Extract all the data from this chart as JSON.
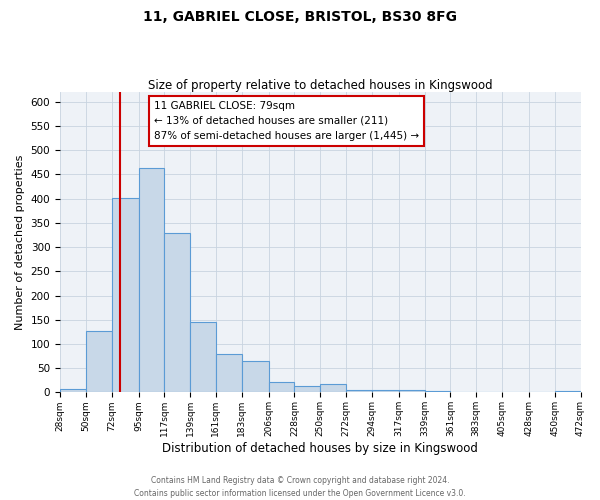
{
  "title": "11, GABRIEL CLOSE, BRISTOL, BS30 8FG",
  "subtitle": "Size of property relative to detached houses in Kingswood",
  "xlabel": "Distribution of detached houses by size in Kingswood",
  "ylabel": "Number of detached properties",
  "bin_edges": [
    28,
    50,
    72,
    95,
    117,
    139,
    161,
    183,
    206,
    228,
    250,
    272,
    294,
    317,
    339,
    361,
    383,
    405,
    428,
    450,
    472
  ],
  "bin_labels": [
    "28sqm",
    "50sqm",
    "72sqm",
    "95sqm",
    "117sqm",
    "139sqm",
    "161sqm",
    "183sqm",
    "206sqm",
    "228sqm",
    "250sqm",
    "272sqm",
    "294sqm",
    "317sqm",
    "339sqm",
    "361sqm",
    "383sqm",
    "405sqm",
    "428sqm",
    "450sqm",
    "472sqm"
  ],
  "bar_heights": [
    8,
    127,
    401,
    463,
    330,
    145,
    80,
    65,
    22,
    13,
    17,
    5,
    5,
    5,
    3,
    0,
    0,
    0,
    0,
    3
  ],
  "bar_color": "#c8d8e8",
  "bar_edge_color": "#5b9bd5",
  "vline_x": 79,
  "vline_color": "#cc0000",
  "ylim": [
    0,
    620
  ],
  "yticks": [
    0,
    50,
    100,
    150,
    200,
    250,
    300,
    350,
    400,
    450,
    500,
    550,
    600
  ],
  "annotation_line1": "11 GABRIEL CLOSE: 79sqm",
  "annotation_line2": "← 13% of detached houses are smaller (211)",
  "annotation_line3": "87% of semi-detached houses are larger (1,445) →",
  "annotation_box_color": "#ffffff",
  "annotation_box_edge": "#cc0000",
  "footer_line1": "Contains HM Land Registry data © Crown copyright and database right 2024.",
  "footer_line2": "Contains public sector information licensed under the Open Government Licence v3.0.",
  "bg_color": "#eef2f7",
  "grid_color": "#c8d4e0",
  "title_fontsize": 10,
  "subtitle_fontsize": 8.5,
  "ylabel_fontsize": 8,
  "xlabel_fontsize": 8.5,
  "ytick_fontsize": 7.5,
  "xtick_fontsize": 6.5,
  "footer_fontsize": 5.5,
  "annot_fontsize": 7.5
}
